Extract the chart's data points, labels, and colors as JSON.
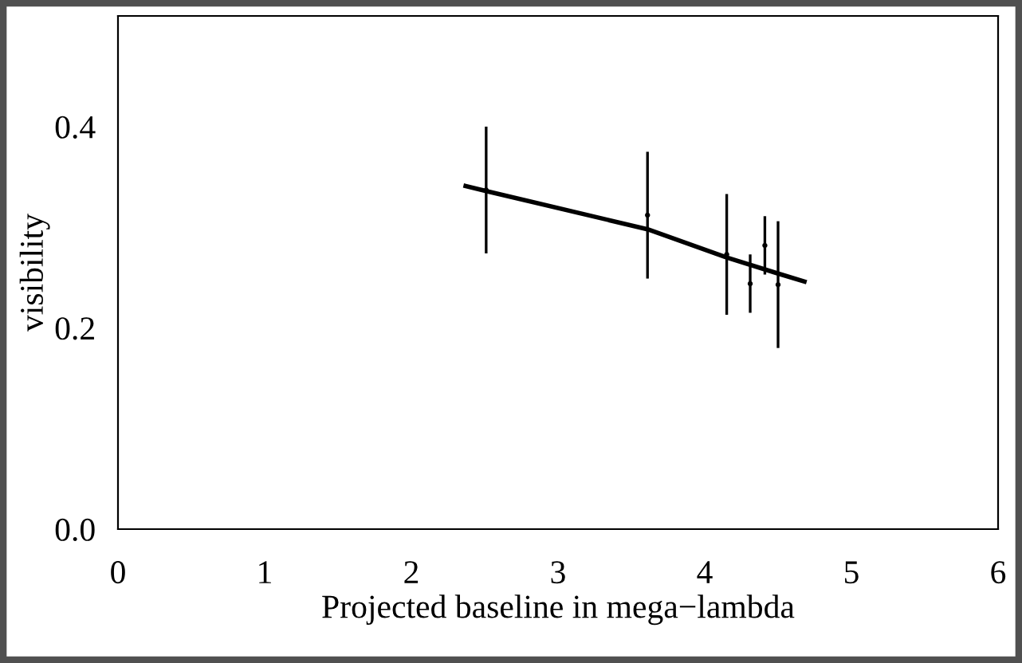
{
  "chart_data": {
    "type": "scatter",
    "xlabel": "Projected baseline in mega−lambda",
    "ylabel": "visibility",
    "marker": "none",
    "grid": false,
    "legend": false,
    "xlim": [
      0,
      6
    ],
    "xticks": [
      0,
      1,
      2,
      3,
      4,
      5,
      6
    ],
    "ylim": [
      0,
      0.51
    ],
    "yticks": [
      {
        "value": 0,
        "label": "0.0"
      },
      {
        "value": 0.2,
        "label": "0.2"
      },
      {
        "value": 0.4,
        "label": "0.4"
      }
    ],
    "x": [
      2.51,
      3.61,
      4.15,
      4.31,
      4.41,
      4.5
    ],
    "series": [
      {
        "color": "#000000",
        "values": [
          0.337,
          0.312,
          0.273,
          0.244,
          0.282,
          0.243
        ],
        "errors": [
          0.063,
          0.063,
          0.06,
          0.029,
          0.029,
          0.063
        ]
      },
      {
        "type": "line",
        "color": "#000000",
        "x": [
          2.37,
          2.51,
          3.61,
          4.15,
          4.5,
          4.68
        ],
        "values": [
          0.341,
          0.336,
          0.298,
          0.27,
          0.254,
          0.246
        ]
      }
    ]
  }
}
